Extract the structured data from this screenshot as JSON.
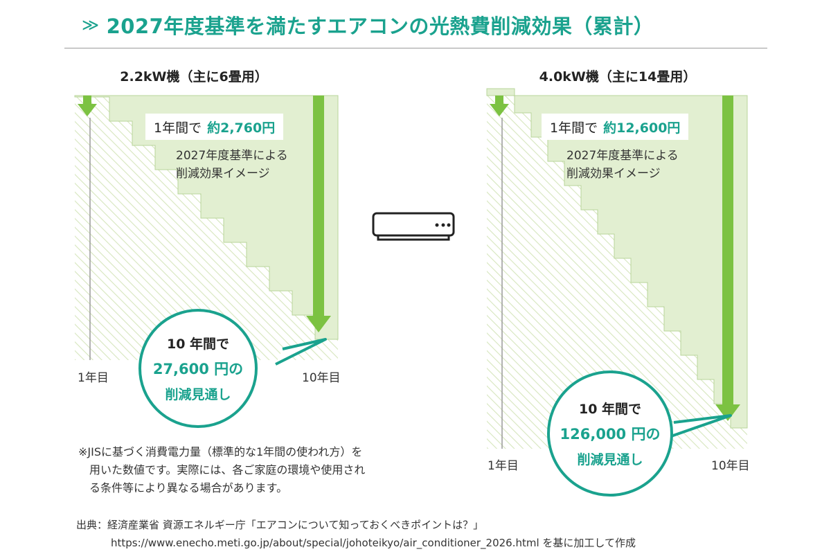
{
  "title": {
    "mark": "≫",
    "text": "2027年度基準を満たすエアコンの光熱費削減効果（累計）"
  },
  "panels": [
    {
      "title": "2.2kW機（主に6畳用）",
      "annual_prefix": "1年間で",
      "annual_value": "約2,760円",
      "desc_line1": "2027年度基準による",
      "desc_line2": "削減効果イメージ",
      "x_start": "1年目",
      "x_end": "10年目",
      "bubble_line1": "10 年間で",
      "bubble_line2": "27,600 円の",
      "bubble_line3": "削減見通し"
    },
    {
      "title": "4.0kW機（主に14畳用）",
      "annual_prefix": "1年間で",
      "annual_value": "約12,600円",
      "desc_line1": "2027年度基準による",
      "desc_line2": "削減効果イメージ",
      "x_start": "1年目",
      "x_end": "10年目",
      "bubble_line1": "10 年間で",
      "bubble_line2": "126,000 円の",
      "bubble_line3": "削減見通し"
    }
  ],
  "center_icon": "air-conditioner-icon",
  "note": {
    "line1": "※JISに基づく消費電力量（標準的な1年間の使われ方）を",
    "line2": "　用いた数値です。実際には、各ご家庭の環境や使用され",
    "line3": "　る条件等により異なる場合があります。"
  },
  "source": {
    "line1": "出典：経済産業省 資源エネルギー庁「エアコンについて知っておくべきポイントは？」",
    "line2": "https://www.enecho.meti.go.jp/about/special/johoteikyo/air_conditioner_2026.html を基に加工して作成"
  },
  "colors": {
    "accent": "#1aa28e",
    "arrow_green": "#7cc242",
    "fill_green": "#e2efd1",
    "hatch": "#d6e6bd"
  }
}
